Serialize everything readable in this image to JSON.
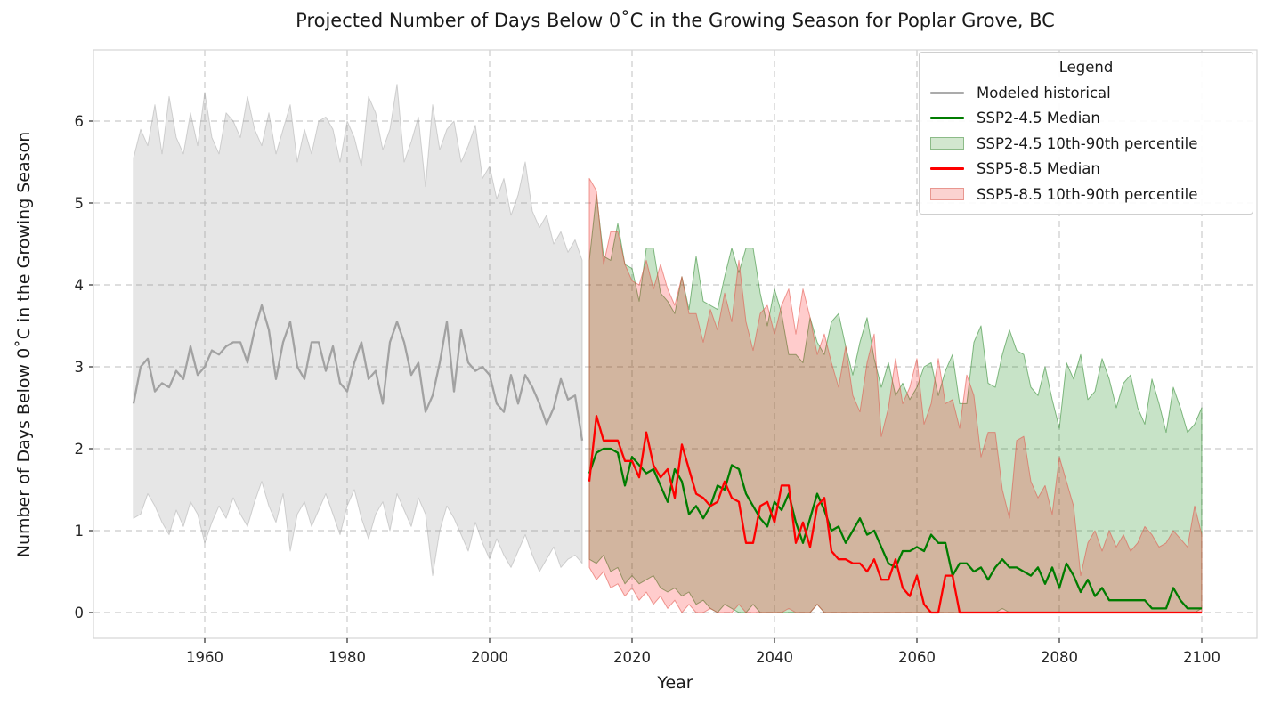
{
  "title": "Projected Number of Days Below 0˚C in the Growing Season for Poplar Grove, BC",
  "axes": {
    "xlabel": "Year",
    "ylabel": "Number of Days Below 0˚C in the Growing Season",
    "x_ticks": [
      1960,
      1980,
      2000,
      2020,
      2040,
      2060,
      2080,
      2100
    ],
    "y_ticks": [
      0,
      1,
      2,
      3,
      4,
      5,
      6
    ]
  },
  "legend": {
    "title": "Legend",
    "entries": [
      {
        "label": "Modeled historical",
        "swatch": "line",
        "color": "#ababab"
      },
      {
        "label": "SSP2-4.5 Median",
        "swatch": "line",
        "color": "#007c00"
      },
      {
        "label": "SSP2-4.5 10th-90th percentile",
        "swatch": "patch",
        "fill": "#d2e7cf",
        "edge": "#8cbb88"
      },
      {
        "label": "SSP5-8.5 Median",
        "swatch": "line",
        "color": "#fe0000"
      },
      {
        "label": "SSP5-8.5 10th-90th percentile",
        "swatch": "patch",
        "fill": "#fbd2d0",
        "edge": "#e89790"
      }
    ]
  },
  "colors": {
    "grid": "#cbcbcb",
    "spine": "#d6d6d6",
    "tick": "#2a2a2a",
    "tick_label": "#262626",
    "historical_line": "#a2a2a2",
    "ssp245_line": "#007c00",
    "ssp585_line": "#fe0000",
    "historical_band_fill": "rgba(140,140,140,0.22)",
    "historical_band_edge": "rgba(140,140,140,0.35)",
    "ssp245_band_fill": "rgba(0,128,0,0.22)",
    "ssp245_band_edge": "rgba(0,110,0,0.45)",
    "ssp585_band_fill": "rgba(255,0,0,0.20)",
    "ssp585_band_edge": "rgba(225,80,70,0.55)"
  },
  "chart_data": {
    "type": "line",
    "title": "Projected Number of Days Below 0˚C in the Growing Season for Poplar Grove, BC",
    "xlabel": "Year",
    "ylabel": "Number of Days Below 0˚C in the Growing Season",
    "xlim": [
      1944,
      2107.5
    ],
    "ylim": [
      -0.32,
      6.87
    ],
    "grid": true,
    "legend_position": "upper right",
    "series": [
      {
        "name": "Modeled historical 10th-90th percentile",
        "role": "band",
        "start_year": 1950,
        "fill": "rgba(140,140,140,0.22)",
        "edge": "rgba(140,140,140,0.35)",
        "upper": [
          5.55,
          5.9,
          5.7,
          6.2,
          5.6,
          6.3,
          5.8,
          5.6,
          6.1,
          5.7,
          6.35,
          5.8,
          5.6,
          6.1,
          6.0,
          5.8,
          6.3,
          5.9,
          5.7,
          6.1,
          5.6,
          5.9,
          6.2,
          5.5,
          5.9,
          5.6,
          6.0,
          6.05,
          5.9,
          5.5,
          6.0,
          5.8,
          5.45,
          6.3,
          6.1,
          5.65,
          5.9,
          6.45,
          5.5,
          5.75,
          6.05,
          5.2,
          6.2,
          5.65,
          5.9,
          6.0,
          5.5,
          5.7,
          5.95,
          5.3,
          5.45,
          5.05,
          5.3,
          4.85,
          5.1,
          5.5,
          4.9,
          4.7,
          4.85,
          4.5,
          4.65,
          4.4,
          4.55,
          4.3
        ],
        "lower": [
          1.15,
          1.2,
          1.45,
          1.3,
          1.1,
          0.95,
          1.25,
          1.05,
          1.35,
          1.2,
          0.85,
          1.1,
          1.3,
          1.15,
          1.4,
          1.2,
          1.05,
          1.35,
          1.6,
          1.3,
          1.1,
          1.45,
          0.75,
          1.2,
          1.35,
          1.05,
          1.25,
          1.45,
          1.2,
          0.95,
          1.3,
          1.5,
          1.15,
          0.9,
          1.2,
          1.35,
          1.0,
          1.45,
          1.25,
          1.05,
          1.4,
          1.2,
          0.45,
          1.0,
          1.3,
          1.15,
          0.95,
          0.75,
          1.1,
          0.85,
          0.65,
          0.9,
          0.7,
          0.55,
          0.75,
          0.95,
          0.7,
          0.5,
          0.65,
          0.8,
          0.55,
          0.65,
          0.7,
          0.6
        ]
      },
      {
        "name": "SSP2-4.5 10th-90th percentile",
        "role": "band",
        "start_year": 2014,
        "fill": "rgba(0,128,0,0.22)",
        "edge": "rgba(0,110,0,0.45)",
        "upper": [
          4.3,
          5.1,
          4.35,
          4.3,
          4.75,
          4.25,
          4.2,
          3.8,
          4.45,
          4.45,
          3.9,
          3.8,
          3.65,
          4.1,
          3.7,
          4.35,
          3.8,
          3.75,
          3.7,
          4.1,
          4.45,
          4.15,
          4.45,
          4.45,
          3.9,
          3.5,
          3.95,
          3.65,
          3.15,
          3.15,
          3.05,
          3.6,
          3.3,
          3.15,
          3.55,
          3.65,
          3.25,
          2.9,
          3.3,
          3.6,
          3.1,
          2.75,
          3.05,
          2.65,
          2.8,
          2.6,
          2.75,
          3.0,
          3.05,
          2.65,
          2.95,
          3.15,
          2.55,
          2.55,
          3.3,
          3.5,
          2.8,
          2.75,
          3.15,
          3.45,
          3.2,
          3.15,
          2.75,
          2.65,
          3.0,
          2.6,
          2.25,
          3.05,
          2.85,
          3.15,
          2.6,
          2.7,
          3.1,
          2.85,
          2.5,
          2.8,
          2.9,
          2.5,
          2.3,
          2.85,
          2.55,
          2.2,
          2.75,
          2.5,
          2.2,
          2.3,
          2.5
        ],
        "lower": [
          0.65,
          0.6,
          0.7,
          0.5,
          0.55,
          0.35,
          0.45,
          0.35,
          0.4,
          0.45,
          0.3,
          0.25,
          0.3,
          0.2,
          0.25,
          0.1,
          0.15,
          0.05,
          0.0,
          0.1,
          0.05,
          0.0,
          0.0,
          0.1,
          0.0,
          0.0,
          0.0,
          0.0,
          0.0,
          0.0,
          0.0,
          0.0,
          0.1,
          0.0,
          0.0,
          0.0,
          0.0,
          0.0,
          0.0,
          0.0,
          0.0,
          0.0,
          0.0,
          0.0,
          0.0,
          0.0,
          0.0,
          0.0,
          0.0,
          0.0,
          0.0,
          0.0,
          0.0,
          0.0,
          0.0,
          0.0,
          0.0,
          0.0,
          0.05,
          0.0,
          0.0,
          0.0,
          0.0,
          0.0,
          0.0,
          0.0,
          0.0,
          0.0,
          0.0,
          0.0,
          0.0,
          0.0,
          0.0,
          0.0,
          0.0,
          0.0,
          0.0,
          0.0,
          0.0,
          0.0,
          0.0,
          0.0,
          0.0,
          0.0,
          0.0,
          0.0,
          0.05
        ]
      },
      {
        "name": "SSP5-8.5 10th-90th percentile",
        "role": "band",
        "start_year": 2014,
        "fill": "rgba(255,0,0,0.20)",
        "edge": "rgba(225,80,70,0.55)",
        "upper": [
          5.3,
          5.15,
          4.25,
          4.65,
          4.65,
          4.25,
          4.05,
          4.0,
          4.3,
          3.95,
          4.25,
          3.95,
          3.75,
          4.1,
          3.65,
          3.65,
          3.3,
          3.7,
          3.45,
          3.9,
          3.55,
          4.3,
          3.55,
          3.2,
          3.65,
          3.75,
          3.4,
          3.75,
          3.95,
          3.4,
          3.95,
          3.6,
          3.15,
          3.4,
          3.05,
          2.75,
          3.25,
          2.65,
          2.45,
          3.05,
          3.4,
          2.15,
          2.5,
          3.1,
          2.55,
          2.75,
          3.1,
          2.3,
          2.55,
          3.1,
          2.55,
          2.6,
          2.25,
          2.9,
          2.65,
          1.9,
          2.2,
          2.2,
          1.5,
          1.15,
          2.1,
          2.15,
          1.6,
          1.4,
          1.55,
          1.2,
          1.9,
          1.6,
          1.3,
          0.45,
          0.85,
          1.0,
          0.75,
          1.0,
          0.8,
          0.95,
          0.75,
          0.85,
          1.05,
          0.95,
          0.8,
          0.85,
          1.0,
          0.9,
          0.8,
          1.3,
          0.95
        ],
        "lower": [
          0.55,
          0.4,
          0.5,
          0.3,
          0.35,
          0.2,
          0.3,
          0.15,
          0.25,
          0.1,
          0.2,
          0.05,
          0.15,
          0.0,
          0.1,
          0.0,
          0.0,
          0.05,
          0.0,
          0.0,
          0.0,
          0.1,
          0.0,
          0.0,
          0.0,
          0.0,
          0.0,
          0.0,
          0.05,
          0.0,
          0.0,
          0.0,
          0.1,
          0.0,
          0.0,
          0.0,
          0.0,
          0.0,
          0.0,
          0.0,
          0.0,
          0.0,
          0.0,
          0.0,
          0.0,
          0.0,
          0.0,
          0.0,
          0.0,
          0.0,
          0.0,
          0.0,
          0.0,
          0.0,
          0.0,
          0.0,
          0.0,
          0.0,
          0.0,
          0.0,
          0.0,
          0.0,
          0.0,
          0.0,
          0.0,
          0.0,
          0.0,
          0.0,
          0.0,
          0.0,
          0.0,
          0.0,
          0.0,
          0.0,
          0.0,
          0.0,
          0.0,
          0.0,
          0.0,
          0.0,
          0.0,
          0.0,
          0.0,
          0.0,
          0.0,
          0.0,
          0.0
        ]
      },
      {
        "name": "Modeled historical",
        "role": "line",
        "start_year": 1950,
        "color": "#a2a2a2",
        "values": [
          2.55,
          3.0,
          3.1,
          2.7,
          2.8,
          2.75,
          2.95,
          2.85,
          3.25,
          2.9,
          3.0,
          3.2,
          3.15,
          3.25,
          3.3,
          3.3,
          3.05,
          3.45,
          3.75,
          3.45,
          2.85,
          3.3,
          3.55,
          3.0,
          2.85,
          3.3,
          3.3,
          2.95,
          3.25,
          2.8,
          2.7,
          3.05,
          3.3,
          2.85,
          2.95,
          2.55,
          3.3,
          3.55,
          3.3,
          2.9,
          3.05,
          2.45,
          2.65,
          3.05,
          3.55,
          2.7,
          3.45,
          3.05,
          2.95,
          3.0,
          2.9,
          2.55,
          2.45,
          2.9,
          2.55,
          2.9,
          2.75,
          2.55,
          2.3,
          2.5,
          2.85,
          2.6,
          2.65,
          2.1
        ]
      },
      {
        "name": "SSP2-4.5 Median",
        "role": "line",
        "start_year": 2014,
        "color": "#007c00",
        "values": [
          1.7,
          1.95,
          2.0,
          2.0,
          1.95,
          1.55,
          1.9,
          1.8,
          1.7,
          1.75,
          1.55,
          1.35,
          1.75,
          1.6,
          1.2,
          1.3,
          1.15,
          1.3,
          1.55,
          1.5,
          1.8,
          1.75,
          1.45,
          1.3,
          1.15,
          1.05,
          1.35,
          1.25,
          1.45,
          1.1,
          0.85,
          1.15,
          1.45,
          1.25,
          1.0,
          1.05,
          0.85,
          1.0,
          1.15,
          0.95,
          1.0,
          0.8,
          0.6,
          0.55,
          0.75,
          0.75,
          0.8,
          0.75,
          0.95,
          0.85,
          0.85,
          0.45,
          0.6,
          0.6,
          0.5,
          0.55,
          0.4,
          0.55,
          0.65,
          0.55,
          0.55,
          0.5,
          0.45,
          0.55,
          0.35,
          0.55,
          0.3,
          0.6,
          0.45,
          0.25,
          0.4,
          0.2,
          0.3,
          0.15,
          0.15,
          0.15,
          0.15,
          0.15,
          0.15,
          0.05,
          0.05,
          0.05,
          0.3,
          0.15,
          0.05,
          0.05,
          0.05
        ]
      },
      {
        "name": "SSP5-8.5 Median",
        "role": "line",
        "start_year": 2014,
        "color": "#fe0000",
        "values": [
          1.6,
          2.4,
          2.1,
          2.1,
          2.1,
          1.85,
          1.85,
          1.65,
          2.2,
          1.8,
          1.65,
          1.75,
          1.4,
          2.05,
          1.75,
          1.45,
          1.4,
          1.3,
          1.35,
          1.6,
          1.4,
          1.35,
          0.85,
          0.85,
          1.3,
          1.35,
          1.1,
          1.55,
          1.55,
          0.85,
          1.1,
          0.8,
          1.3,
          1.4,
          0.75,
          0.65,
          0.65,
          0.6,
          0.6,
          0.5,
          0.65,
          0.4,
          0.4,
          0.65,
          0.3,
          0.2,
          0.45,
          0.1,
          0.0,
          0.0,
          0.45,
          0.45,
          0.0,
          0.0,
          0.0,
          0.0,
          0.0,
          0.0,
          0.0,
          0.0,
          0.0,
          0.0,
          0.0,
          0.0,
          0.0,
          0.0,
          0.0,
          0.0,
          0.0,
          0.0,
          0.0,
          0.0,
          0.0,
          0.0,
          0.0,
          0.0,
          0.0,
          0.0,
          0.0,
          0.0,
          0.0,
          0.0,
          0.0,
          0.0,
          0.0,
          0.0,
          0.0
        ]
      }
    ]
  }
}
